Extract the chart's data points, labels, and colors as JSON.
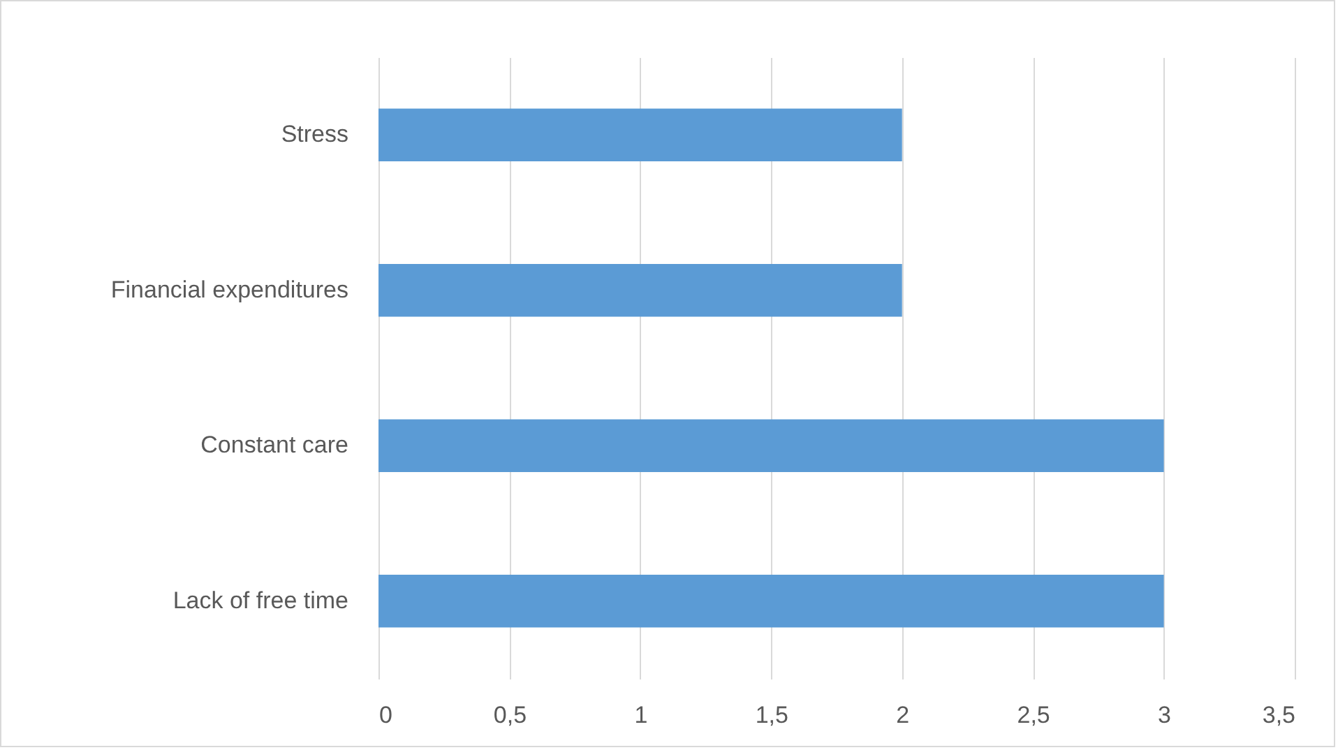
{
  "chart_data": {
    "type": "bar",
    "orientation": "horizontal",
    "categories": [
      "Stress",
      "Financial expenditures",
      "Constant care",
      "Lack of free time"
    ],
    "values": [
      2,
      2,
      3,
      3
    ],
    "color": "#5b9bd5",
    "xlim": [
      0,
      3.5
    ],
    "xticks": [
      0,
      {
        "value": 0.5,
        "label": "0,5"
      },
      1,
      {
        "value": 1.5,
        "label": "1,5"
      },
      2,
      {
        "value": 2.5,
        "label": "2,5"
      },
      3,
      {
        "value": 3.5,
        "label": "3,5"
      }
    ],
    "grid": "x"
  }
}
